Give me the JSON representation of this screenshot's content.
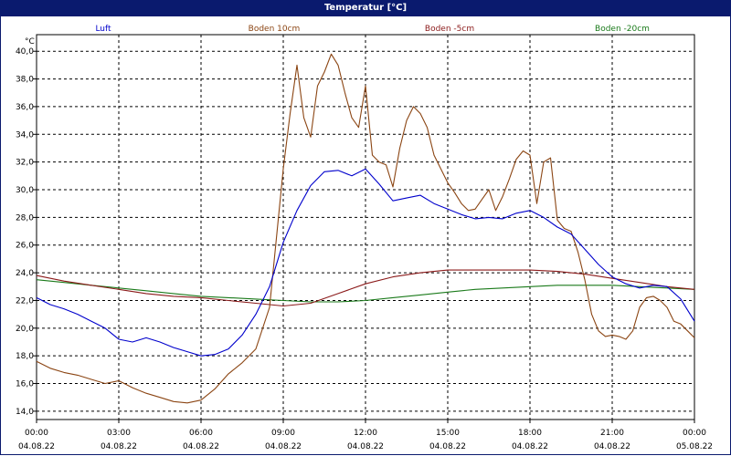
{
  "window": {
    "title": "Temperatur [°C]"
  },
  "chart_data": {
    "type": "line",
    "ylabel": "°C",
    "ylim": [
      13.4,
      41.2
    ],
    "yticks": [
      14,
      16,
      18,
      20,
      22,
      24,
      26,
      28,
      30,
      32,
      34,
      36,
      38,
      40
    ],
    "ytick_labels": [
      "14,0",
      "16,0",
      "18,0",
      "20,0",
      "22,0",
      "24,0",
      "26,0",
      "28,0",
      "30,0",
      "32,0",
      "34,0",
      "36,0",
      "38,0",
      "40,0"
    ],
    "xlim": [
      0,
      24
    ],
    "xticks": [
      0,
      3,
      6,
      9,
      12,
      15,
      18,
      21,
      24
    ],
    "xtick_times": [
      "00:00",
      "03:00",
      "06:00",
      "09:00",
      "12:00",
      "15:00",
      "18:00",
      "21:00",
      "00:00"
    ],
    "xtick_dates": [
      "04.08.22",
      "04.08.22",
      "04.08.22",
      "04.08.22",
      "04.08.22",
      "04.08.22",
      "04.08.22",
      "04.08.22",
      "05.08.22"
    ],
    "grid": true,
    "legend_position": "top",
    "series": [
      {
        "name": "Luft",
        "color": "#0000cc",
        "x": [
          0,
          0.5,
          1,
          1.5,
          2,
          2.5,
          3,
          3.5,
          4,
          4.5,
          5,
          5.5,
          6,
          6.5,
          7,
          7.5,
          8,
          8.5,
          9,
          9.5,
          10,
          10.5,
          11,
          11.5,
          12,
          12.5,
          13,
          13.5,
          14,
          14.5,
          15,
          15.5,
          16,
          16.5,
          17,
          17.5,
          18,
          18.5,
          19,
          19.5,
          20,
          20.5,
          21,
          21.5,
          22,
          22.5,
          23,
          23.5,
          24
        ],
        "values": [
          22.2,
          21.7,
          21.4,
          21.0,
          20.5,
          20.0,
          19.2,
          19.0,
          19.3,
          19.0,
          18.6,
          18.3,
          18.0,
          18.1,
          18.5,
          19.5,
          21.0,
          23.0,
          26.2,
          28.5,
          30.3,
          31.3,
          31.4,
          31.0,
          31.5,
          30.4,
          29.2,
          29.4,
          29.6,
          29.0,
          28.6,
          28.2,
          27.9,
          28.0,
          27.9,
          28.3,
          28.5,
          28.0,
          27.3,
          26.8,
          25.7,
          24.6,
          23.7,
          23.2,
          22.9,
          23.1,
          23.0,
          22.1,
          20.5
        ]
      },
      {
        "name": "Boden 10cm",
        "color": "#8b4513",
        "x": [
          0,
          0.5,
          1,
          1.5,
          2,
          2.5,
          3,
          3.5,
          4,
          4.5,
          5,
          5.5,
          6,
          6.5,
          7,
          7.5,
          8,
          8.5,
          9,
          9.25,
          9.5,
          9.75,
          10,
          10.25,
          10.5,
          10.75,
          11,
          11.25,
          11.5,
          11.75,
          12,
          12.25,
          12.5,
          12.75,
          13,
          13.25,
          13.5,
          13.75,
          14,
          14.25,
          14.5,
          14.75,
          15,
          15.25,
          15.5,
          15.75,
          16,
          16.25,
          16.5,
          16.75,
          17,
          17.25,
          17.5,
          17.75,
          18,
          18.25,
          18.5,
          18.75,
          19,
          19.25,
          19.5,
          19.75,
          20,
          20.25,
          20.5,
          20.75,
          21,
          21.25,
          21.5,
          21.75,
          22,
          22.25,
          22.5,
          22.75,
          23,
          23.25,
          23.5,
          23.75,
          24
        ],
        "values": [
          17.6,
          17.1,
          16.8,
          16.6,
          16.3,
          16.0,
          16.2,
          15.7,
          15.3,
          15.0,
          14.7,
          14.6,
          14.8,
          15.6,
          16.7,
          17.5,
          18.5,
          21.5,
          31.5,
          35.5,
          39.0,
          35.2,
          33.8,
          37.5,
          38.5,
          39.8,
          39.0,
          37.0,
          35.2,
          34.5,
          37.5,
          32.5,
          32.0,
          31.8,
          30.2,
          33.0,
          35.0,
          36.0,
          35.5,
          34.5,
          32.5,
          31.5,
          30.5,
          29.8,
          29.0,
          28.5,
          28.6,
          29.3,
          30.0,
          28.5,
          29.5,
          30.8,
          32.2,
          32.8,
          32.5,
          29.0,
          32.0,
          32.3,
          27.8,
          27.2,
          27.0,
          25.5,
          23.5,
          21.0,
          19.8,
          19.4,
          19.5,
          19.4,
          19.2,
          19.8,
          21.5,
          22.2,
          22.3,
          22.0,
          21.5,
          20.5,
          20.3,
          19.8,
          19.3
        ]
      },
      {
        "name": "Boden -5cm",
        "color": "#8b1a1a",
        "x": [
          0,
          1,
          2,
          3,
          4,
          5,
          6,
          7,
          8,
          9,
          10,
          11,
          12,
          13,
          14,
          15,
          16,
          17,
          18,
          19,
          20,
          21,
          22,
          23,
          24
        ],
        "values": [
          23.8,
          23.4,
          23.1,
          22.8,
          22.5,
          22.3,
          22.2,
          22.0,
          21.8,
          21.6,
          21.8,
          22.5,
          23.2,
          23.7,
          24.0,
          24.2,
          24.2,
          24.2,
          24.2,
          24.1,
          23.9,
          23.6,
          23.3,
          23.0,
          22.8
        ]
      },
      {
        "name": "Boden -20cm",
        "color": "#1a7a1a",
        "x": [
          0,
          1,
          2,
          3,
          4,
          5,
          6,
          7,
          8,
          9,
          10,
          11,
          12,
          13,
          14,
          15,
          16,
          17,
          18,
          19,
          20,
          21,
          22,
          23,
          24
        ],
        "values": [
          23.5,
          23.3,
          23.1,
          22.9,
          22.7,
          22.5,
          22.3,
          22.2,
          22.1,
          22.0,
          21.9,
          21.9,
          22.0,
          22.2,
          22.4,
          22.6,
          22.8,
          22.9,
          23.0,
          23.1,
          23.1,
          23.1,
          23.0,
          22.9,
          22.8
        ]
      }
    ]
  }
}
